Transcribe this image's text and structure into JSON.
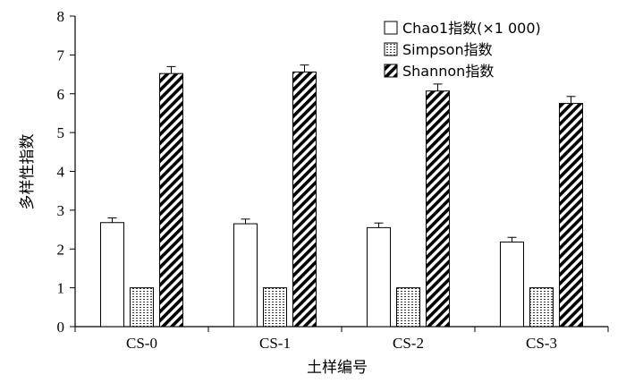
{
  "chart_data": {
    "type": "bar",
    "title": "",
    "xlabel": "土样编号",
    "ylabel": "多样性指数",
    "ylim": [
      0,
      8
    ],
    "yticks": [
      0,
      1,
      2,
      3,
      4,
      5,
      6,
      7,
      8
    ],
    "grid": false,
    "legend_position": "top-right",
    "categories": [
      "CS-0",
      "CS-1",
      "CS-2",
      "CS-3"
    ],
    "series": [
      {
        "name": "Chao1指数(×1 000)",
        "pattern": "white",
        "values": [
          2.68,
          2.65,
          2.55,
          2.18
        ],
        "errors": [
          0.12,
          0.12,
          0.12,
          0.12
        ]
      },
      {
        "name": "Simpson指数",
        "pattern": "dots",
        "values": [
          1.0,
          1.0,
          1.0,
          1.0
        ],
        "errors": [
          0,
          0,
          0,
          0
        ]
      },
      {
        "name": "Shannon指数",
        "pattern": "diagonal",
        "values": [
          6.52,
          6.56,
          6.07,
          5.75
        ],
        "errors": [
          0.18,
          0.18,
          0.18,
          0.18
        ]
      }
    ]
  }
}
